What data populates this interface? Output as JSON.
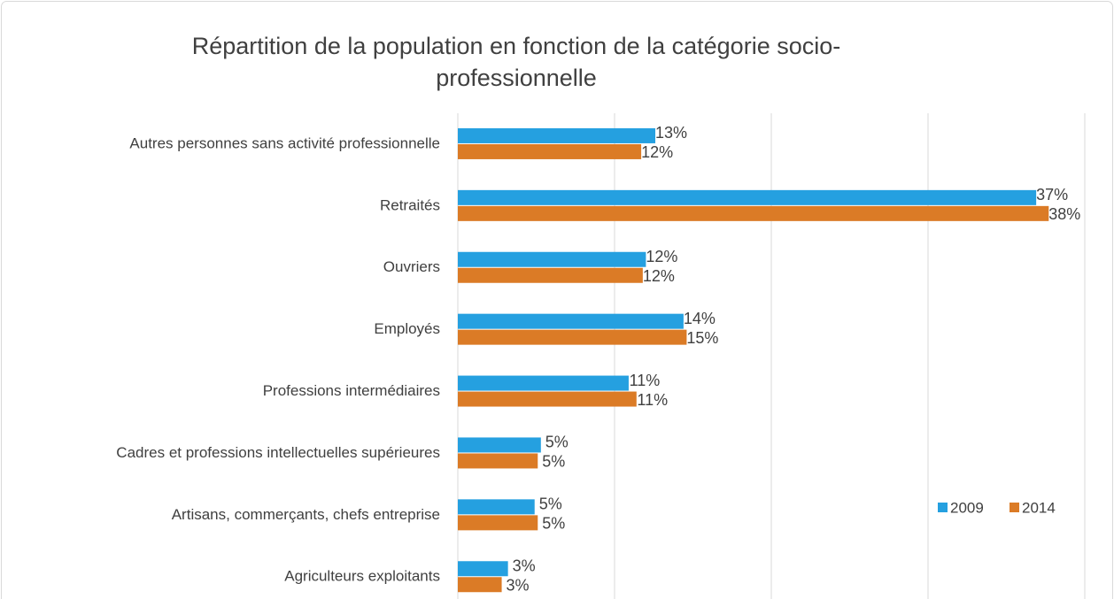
{
  "chart_data": {
    "type": "bar",
    "orientation": "horizontal",
    "title": "Répartition de la population en fonction de la catégorie socio-professionnelle",
    "categories": [
      "Autres personnes sans activité professionnelle",
      "Retraités",
      "Ouvriers",
      "Employés",
      "Professions intermédiaires",
      "Cadres et professions intellectuelles supérieures",
      "Artisans, commerçants, chefs entreprise",
      "Agriculteurs exploitants"
    ],
    "series": [
      {
        "name": "2009",
        "color": "#25a0e0",
        "values": [
          12.6,
          36.9,
          12.0,
          14.4,
          10.9,
          5.3,
          4.9,
          3.2
        ],
        "value_labels": [
          "13%",
          "37%",
          "12%",
          "14%",
          "11%",
          "5%",
          "5%",
          "3%"
        ]
      },
      {
        "name": "2014",
        "color": "#db7b26",
        "values": [
          11.7,
          37.7,
          11.8,
          14.6,
          11.4,
          5.1,
          5.1,
          2.8
        ],
        "value_labels": [
          "12%",
          "38%",
          "12%",
          "15%",
          "11%",
          "5%",
          "5%",
          "3%"
        ]
      }
    ],
    "xlim": [
      0,
      40
    ],
    "xticks": [
      0,
      10,
      20,
      30,
      40
    ],
    "grid": true,
    "legend": "right"
  }
}
